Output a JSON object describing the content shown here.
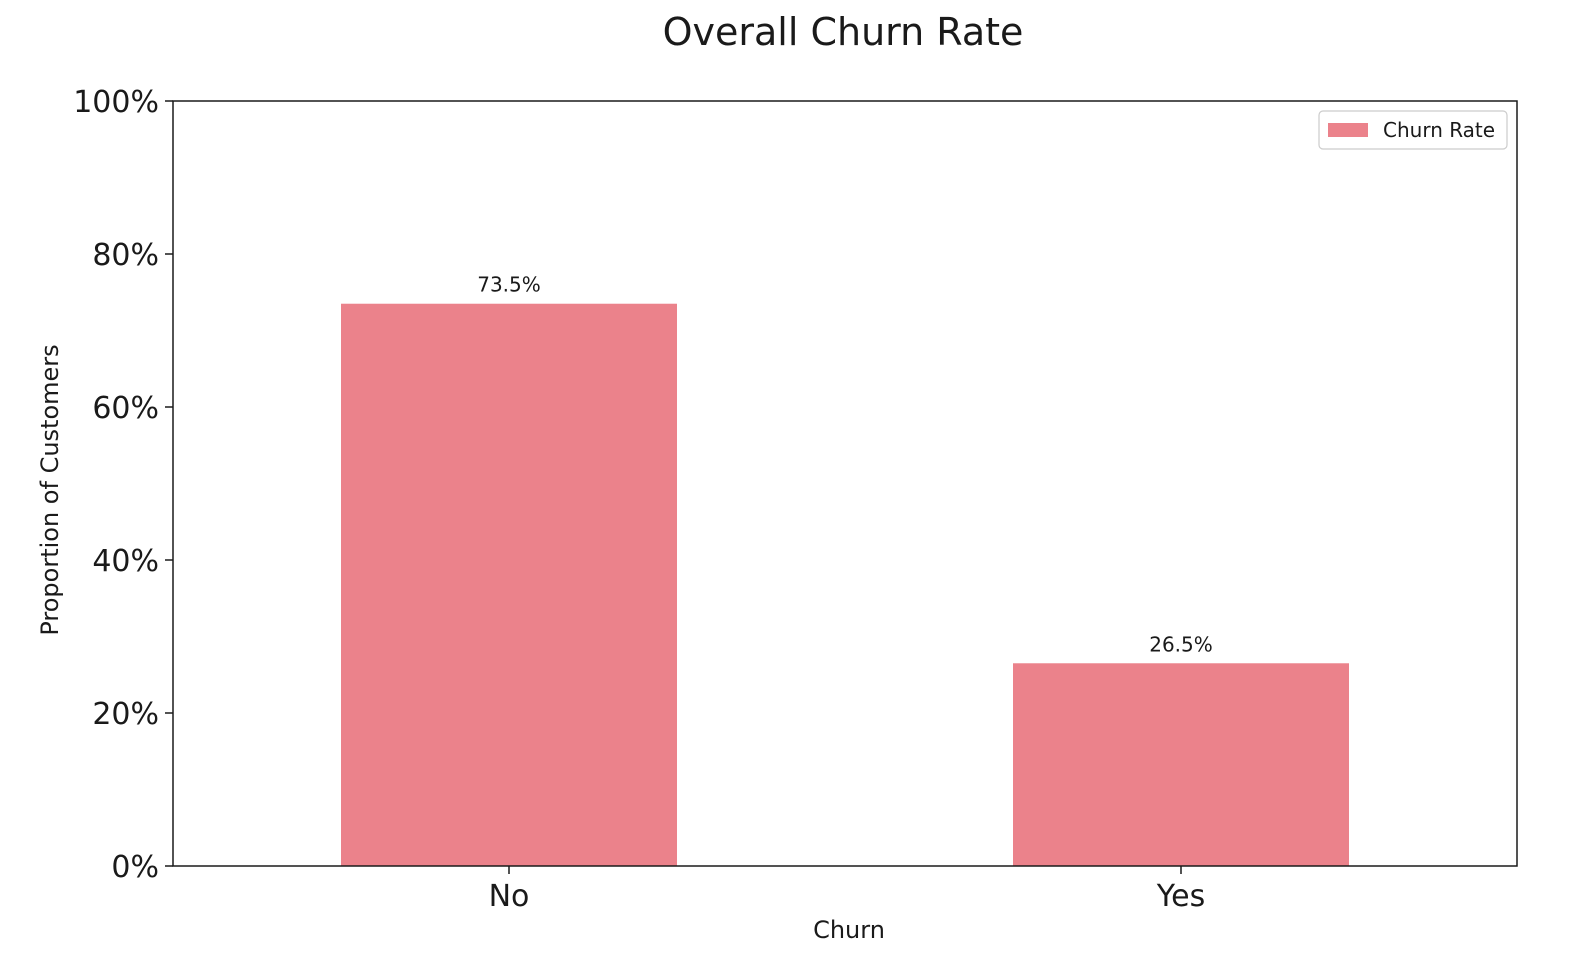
{
  "chart_data": {
    "type": "bar",
    "title": "Overall Churn Rate",
    "xlabel": "Churn",
    "ylabel": "Proportion of Customers",
    "categories": [
      "No",
      "Yes"
    ],
    "series": [
      {
        "name": "Churn Rate",
        "values": [
          0.735,
          0.265
        ],
        "color": "#eb828b"
      }
    ],
    "data_labels": [
      "73.5%",
      "26.5%"
    ],
    "ylim": [
      0,
      1
    ],
    "yticks": [
      0,
      0.2,
      0.4,
      0.6,
      0.8,
      1.0
    ],
    "ytick_labels": [
      "0%",
      "20%",
      "40%",
      "60%",
      "80%",
      "100%"
    ],
    "grid": false,
    "legend": {
      "position": "top-right",
      "entries": [
        "Churn Rate"
      ]
    }
  }
}
